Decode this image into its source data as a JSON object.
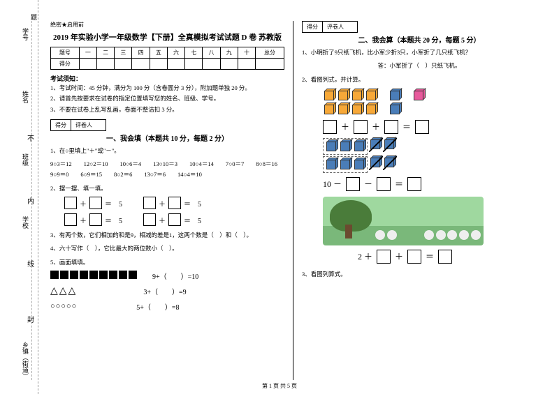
{
  "secret": "绝密★启用前",
  "title": "2019 年实验小学一年级数学【下册】全真模拟考试试题 D 卷 苏教版",
  "table_headers": [
    "题号",
    "一",
    "二",
    "三",
    "四",
    "五",
    "六",
    "七",
    "八",
    "九",
    "十",
    "总分"
  ],
  "table_row2": "得分",
  "notice_title": "考试须知：",
  "rules": [
    "1、考试时间：45 分钟，满分为 100 分（含卷面分 3 分），附加题单独 20 分。",
    "2、请首先按要求在试卷的指定位置填写您的姓名、班级、学号。",
    "3、不要在试卷上乱写乱画，卷面不整洁扣 3 分。"
  ],
  "score_labels": [
    "得分",
    "评卷人"
  ],
  "section1_title": "一、我会填（本题共 10 分，每题 2 分）",
  "q1_1": "1、在○里填上\"＋\"或\"－\"。",
  "q1_1_items": "9○3＝12　　12○2＝10　　10○6＝4　　13○10＝3　　10○4＝14　　7○0＝7　　8○8＝16　　9○9＝0　　6○9＝15　　8○2＝6　　13○7＝6　　14○4＝10",
  "q1_2": "2、摆一摆、填一填。",
  "eq5": "＝　5",
  "q1_3": "3、有两个数，它们相加的和是9，相减的差是1，这两个数是（　）和（　）。",
  "q1_4": "4、六十写作（　），它比最大的两位数小（　）。",
  "q1_5": "5、画面填填。",
  "fill_eqs": [
    "9+（　　）=10",
    "3+（　　）=9",
    "5+（　　）=8"
  ],
  "section2_title": "二、我会算（本题共 20 分，每题 5 分）",
  "q2_1": "1、小明折了9只纸飞机，比小军少折3只，小军折了几只纸飞机？",
  "q2_1_ans": "答：小军折了（　）只纸飞机。",
  "q2_2": "2、看图列式，并计算。",
  "eq_10": "10 －",
  "eq_2": "2 ＋",
  "q2_3": "3、看图列算式。",
  "sidebar": {
    "xuehao": "学号",
    "xingming": "姓名",
    "banji": "班级",
    "xuexiao": "学校",
    "xian": "线",
    "xiangzhen": "乡镇（街道）",
    "nei": "内",
    "ti": "题",
    "feng": "封"
  },
  "scissors_marks": [
    "不",
    "内",
    "线",
    "封"
  ],
  "footer": "第 1 页 共 5 页"
}
